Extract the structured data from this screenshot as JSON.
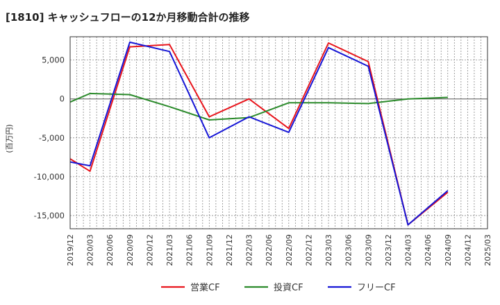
{
  "chart_data": {
    "type": "line",
    "title": "[1810]  キャッシュフローの12か月移動合計の推移",
    "ylabel": "(百万円)",
    "xlabel": "",
    "ylim": [
      -16700,
      8000
    ],
    "yticks": [
      5000,
      0,
      -5000,
      -10000,
      -15000
    ],
    "ytick_labels": [
      "5,000",
      "0",
      "-5,000",
      "-10,000",
      "-15,000"
    ],
    "x_labels": [
      "2019/12",
      "2020/03",
      "2020/06",
      "2020/09",
      "2020/12",
      "2021/03",
      "2021/06",
      "2021/09",
      "2021/12",
      "2022/03",
      "2022/06",
      "2022/09",
      "2022/12",
      "2023/03",
      "2023/06",
      "2023/09",
      "2023/12",
      "2024/03",
      "2024/06",
      "2024/09",
      "2024/12",
      "2025/03"
    ],
    "series": [
      {
        "name": "営業CF",
        "color": "#e8141b",
        "points": [
          [
            0,
            -7700
          ],
          [
            1,
            -9300
          ],
          [
            3,
            6700
          ],
          [
            5,
            7000
          ],
          [
            7,
            -2300
          ],
          [
            9,
            0
          ],
          [
            11,
            -3800
          ],
          [
            13,
            7200
          ],
          [
            15,
            4800
          ],
          [
            17,
            -16200
          ],
          [
            19,
            -12000
          ]
        ]
      },
      {
        "name": "投資CF",
        "color": "#2a8a2a",
        "points": [
          [
            0,
            -400
          ],
          [
            1,
            700
          ],
          [
            3,
            550
          ],
          [
            5,
            -1000
          ],
          [
            7,
            -2700
          ],
          [
            9,
            -2400
          ],
          [
            11,
            -500
          ],
          [
            13,
            -500
          ],
          [
            15,
            -600
          ],
          [
            17,
            0
          ],
          [
            19,
            200
          ]
        ]
      },
      {
        "name": "フリーCF",
        "color": "#1515d6",
        "points": [
          [
            0,
            -8100
          ],
          [
            1,
            -8600
          ],
          [
            3,
            7300
          ],
          [
            5,
            6100
          ],
          [
            7,
            -5000
          ],
          [
            9,
            -2300
          ],
          [
            11,
            -4300
          ],
          [
            13,
            6600
          ],
          [
            15,
            4200
          ],
          [
            17,
            -16200
          ],
          [
            19,
            -11800
          ]
        ]
      }
    ],
    "legend_position": "bottom"
  }
}
